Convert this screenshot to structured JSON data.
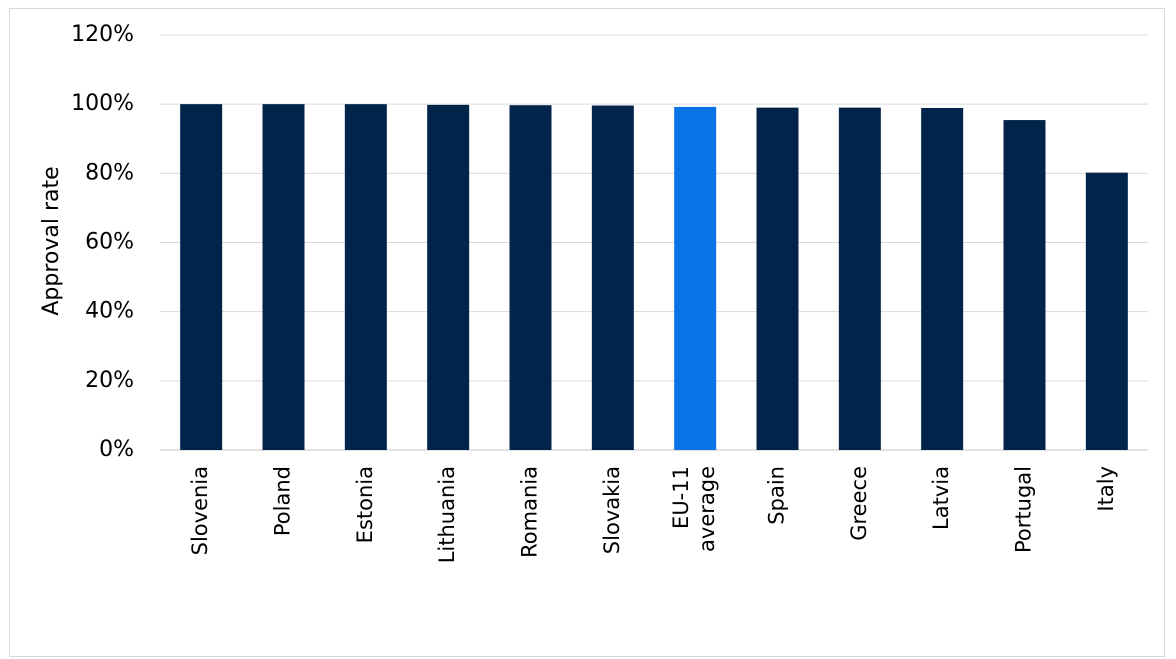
{
  "chart_data": {
    "type": "bar",
    "title": "",
    "xlabel": "",
    "ylabel": "Approval rate",
    "ylim": [
      0,
      120
    ],
    "yticks": [
      0,
      20,
      40,
      60,
      80,
      100,
      120
    ],
    "ytick_labels": [
      "0%",
      "20%",
      "40%",
      "60%",
      "80%",
      "100%",
      "120%"
    ],
    "grid": true,
    "legend": "none",
    "categories": [
      [
        "Slovenia"
      ],
      [
        "Poland"
      ],
      [
        "Estonia"
      ],
      [
        "Lithuania"
      ],
      [
        "Romania"
      ],
      [
        "Slovakia"
      ],
      [
        "EU-11",
        "average"
      ],
      [
        "Spain"
      ],
      [
        "Greece"
      ],
      [
        "Latvia"
      ],
      [
        "Portugal"
      ],
      [
        "Italy"
      ]
    ],
    "values": [
      100,
      100,
      100,
      99.8,
      99.7,
      99.6,
      99.2,
      99.0,
      99.0,
      98.9,
      95.4,
      80.2
    ],
    "highlight_index": 6,
    "colors": {
      "bar": "#00244a",
      "highlight": "#0a73e8",
      "grid": "#d9d9d9"
    }
  }
}
